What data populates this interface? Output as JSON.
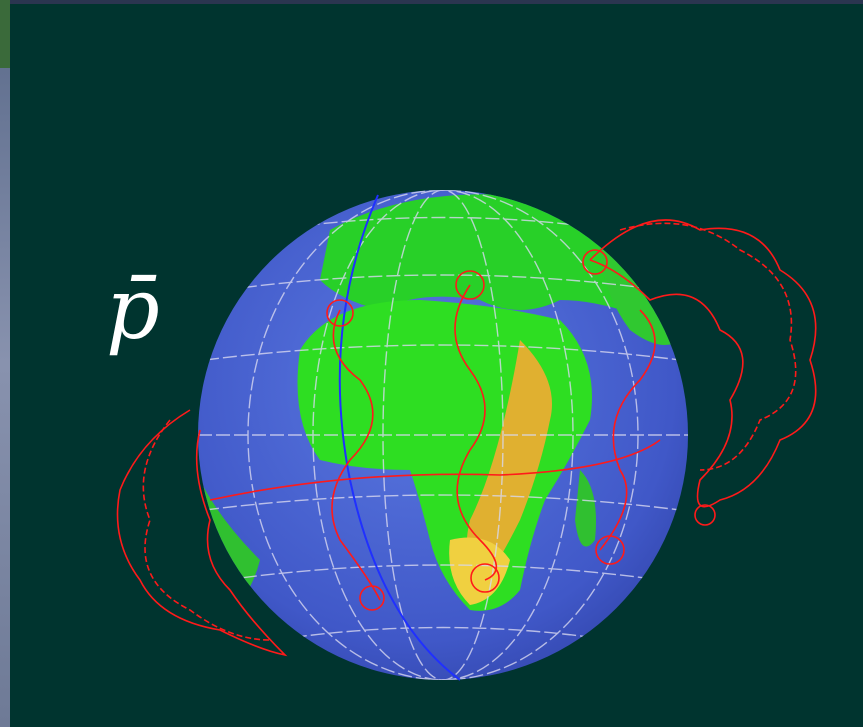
{
  "label": "p̄"
}
